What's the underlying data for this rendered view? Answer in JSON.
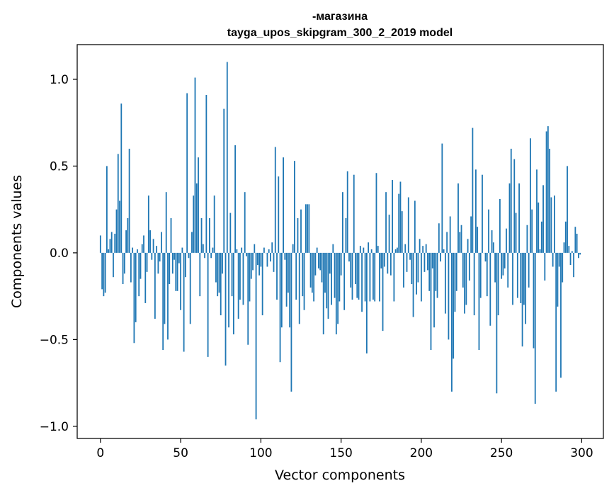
{
  "chart_data": {
    "type": "bar",
    "title_line1": "-магазина",
    "title_line2": "tayga_upos_skipgram_300_2_2019 model",
    "xlabel": "Vector components",
    "ylabel": "Components values",
    "xlim": [
      -14.5,
      313.5
    ],
    "ylim": [
      -1.07,
      1.2
    ],
    "x_ticks": [
      0,
      50,
      100,
      150,
      200,
      250,
      300
    ],
    "x_tick_labels": [
      "0",
      "50",
      "100",
      "150",
      "200",
      "250",
      "300"
    ],
    "y_ticks": [
      -1.0,
      -0.5,
      0.0,
      0.5,
      1.0
    ],
    "y_tick_labels": [
      "−1.0",
      "−0.5",
      "0.0",
      "0.5",
      "1.0"
    ],
    "bar_color": "#1f77b4",
    "grid": false,
    "values": [
      0.1,
      -0.21,
      -0.25,
      -0.23,
      0.5,
      0.02,
      0.08,
      0.12,
      -0.14,
      0.11,
      0.25,
      0.57,
      0.3,
      0.86,
      -0.18,
      -0.12,
      0.13,
      0.2,
      0.6,
      -0.17,
      0.03,
      -0.52,
      -0.4,
      0.02,
      -0.25,
      -0.15,
      0.05,
      0.1,
      -0.29,
      -0.11,
      0.33,
      0.13,
      -0.04,
      0.08,
      -0.38,
      0.04,
      -0.12,
      -0.05,
      0.12,
      -0.56,
      -0.41,
      0.35,
      -0.5,
      -0.18,
      0.2,
      -0.12,
      -0.04,
      -0.22,
      -0.22,
      -0.06,
      -0.33,
      0.03,
      -0.57,
      -0.14,
      0.92,
      -0.03,
      -0.41,
      0.12,
      0.33,
      1.01,
      0.4,
      0.55,
      -0.25,
      0.2,
      0.05,
      -0.03,
      0.91,
      -0.6,
      0.2,
      -0.03,
      0.03,
      0.33,
      -0.17,
      -0.25,
      -0.23,
      -0.36,
      -0.12,
      0.83,
      -0.65,
      1.1,
      -0.43,
      0.23,
      -0.25,
      -0.47,
      0.62,
      0.02,
      -0.38,
      -0.27,
      0.03,
      -0.3,
      0.35,
      -0.02,
      -0.53,
      -0.28,
      -0.15,
      -0.1,
      0.05,
      -0.96,
      -0.07,
      -0.13,
      -0.08,
      -0.36,
      0.03,
      0.0,
      -0.08,
      0.02,
      -0.05,
      0.06,
      -0.11,
      0.61,
      -0.27,
      0.44,
      -0.63,
      -0.43,
      0.55,
      -0.04,
      -0.31,
      -0.23,
      -0.43,
      -0.8,
      0.05,
      0.53,
      -0.27,
      0.2,
      -0.41,
      0.25,
      -0.25,
      -0.33,
      0.28,
      0.28,
      0.28,
      -0.2,
      -0.23,
      -0.28,
      -0.13,
      0.03,
      -0.09,
      -0.1,
      -0.17,
      -0.47,
      -0.23,
      -0.32,
      -0.38,
      -0.12,
      -0.3,
      0.05,
      -0.26,
      -0.47,
      -0.41,
      -0.28,
      -0.13,
      0.35,
      -0.33,
      0.2,
      0.47,
      -0.05,
      -0.2,
      -0.27,
      0.45,
      -0.18,
      -0.26,
      -0.27,
      0.04,
      -0.34,
      0.03,
      -0.28,
      -0.58,
      0.06,
      -0.28,
      0.02,
      -0.27,
      -0.28,
      0.46,
      0.04,
      -0.28,
      -0.09,
      -0.45,
      -0.08,
      0.35,
      -0.12,
      0.22,
      -0.13,
      0.42,
      -0.28,
      0.02,
      0.03,
      0.34,
      0.41,
      0.24,
      -0.2,
      0.05,
      -0.11,
      0.32,
      -0.04,
      -0.18,
      -0.37,
      0.3,
      -0.24,
      -0.17,
      0.08,
      -0.28,
      0.04,
      -0.11,
      0.05,
      -0.1,
      -0.22,
      -0.56,
      -0.09,
      -0.43,
      -0.22,
      -0.26,
      0.17,
      -0.05,
      0.63,
      0.02,
      -0.35,
      0.12,
      -0.5,
      0.21,
      -0.8,
      -0.61,
      -0.34,
      -0.22,
      0.4,
      0.12,
      0.16,
      -0.2,
      -0.35,
      -0.3,
      0.08,
      -0.16,
      0.21,
      0.72,
      -0.36,
      0.48,
      0.15,
      -0.56,
      -0.26,
      0.45,
      0.0,
      -0.05,
      -0.25,
      0.25,
      -0.42,
      0.13,
      0.06,
      -0.17,
      -0.81,
      -0.36,
      0.31,
      -0.15,
      -0.13,
      -0.09,
      0.14,
      -0.2,
      0.4,
      0.6,
      -0.3,
      0.54,
      0.23,
      -0.26,
      0.4,
      -0.29,
      -0.54,
      -0.3,
      -0.41,
      0.16,
      -0.2,
      0.66,
      0.25,
      -0.55,
      -0.87,
      0.48,
      0.29,
      0.02,
      0.18,
      0.39,
      -0.16,
      0.7,
      0.73,
      0.6,
      0.32,
      -0.08,
      0.33,
      -0.8,
      -0.31,
      -0.08,
      -0.72,
      -0.17,
      0.06,
      0.18,
      0.5,
      0.04,
      -0.07,
      0.01,
      -0.14,
      0.15,
      0.11,
      -0.03,
      -0.01
    ]
  }
}
